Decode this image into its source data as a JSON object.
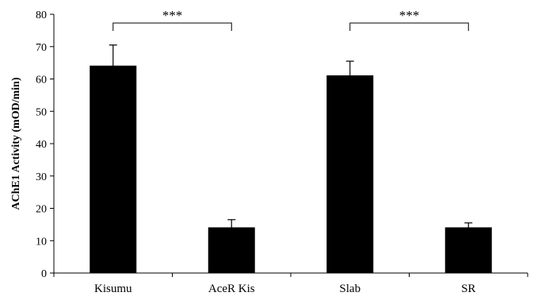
{
  "chart_data": {
    "type": "bar",
    "ylabel": "AChE1 Activity (mOD/min)",
    "xlabel": "",
    "ylim": [
      0,
      80
    ],
    "yticks": [
      0,
      10,
      20,
      30,
      40,
      50,
      60,
      70,
      80
    ],
    "grid": false,
    "bar_color": "#000000",
    "categories": [
      "Kisumu",
      "AceR Kis",
      "Slab",
      "SR"
    ],
    "values": [
      64,
      14,
      61,
      14
    ],
    "error_upper": [
      6.5,
      2.5,
      4.5,
      1.5
    ],
    "significance": [
      {
        "from": 0,
        "to": 1,
        "label": "***"
      },
      {
        "from": 2,
        "to": 3,
        "label": "***"
      }
    ]
  }
}
